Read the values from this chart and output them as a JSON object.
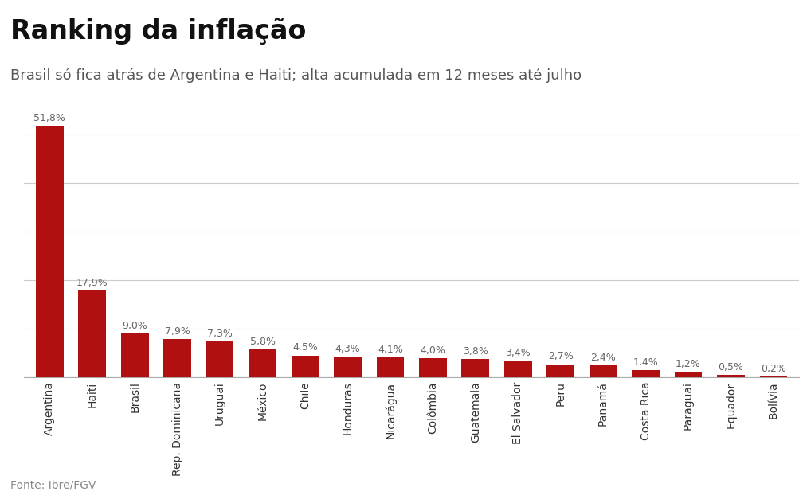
{
  "title": "Ranking da inflação",
  "subtitle": "Brasil só fica atrás de Argentina e Haiti; alta acumulada em 12 meses até julho",
  "footer": "Fonte: Ibre/FGV",
  "categories": [
    "Argentina",
    "Haiti",
    "Brasil",
    "Rep. Dominicana",
    "Uruguai",
    "México",
    "Chile",
    "Honduras",
    "Nicarágua",
    "Colômbia",
    "Guatemala",
    "El Salvador",
    "Peru",
    "Panamá",
    "Costa Rica",
    "Paraguai",
    "Equador",
    "Bolívia"
  ],
  "values": [
    51.8,
    17.9,
    9.0,
    7.9,
    7.3,
    5.8,
    4.5,
    4.3,
    4.1,
    4.0,
    3.8,
    3.4,
    2.7,
    2.4,
    1.4,
    1.2,
    0.5,
    0.2
  ],
  "labels": [
    "51,8%",
    "17,9%",
    "9,0%",
    "7,9%",
    "7,3%",
    "5,8%",
    "4,5%",
    "4,3%",
    "4,1%",
    "4,0%",
    "3,8%",
    "3,4%",
    "2,7%",
    "2,4%",
    "1,4%",
    "1,2%",
    "0,5%",
    "0,2%"
  ],
  "bar_color": "#b01010",
  "background_color": "#ffffff",
  "title_fontsize": 24,
  "subtitle_fontsize": 13,
  "label_fontsize": 9,
  "footer_fontsize": 10,
  "ylim": [
    0,
    58
  ],
  "yticks": [
    0,
    10,
    20,
    30,
    40,
    50
  ],
  "grid_color": "#cccccc"
}
